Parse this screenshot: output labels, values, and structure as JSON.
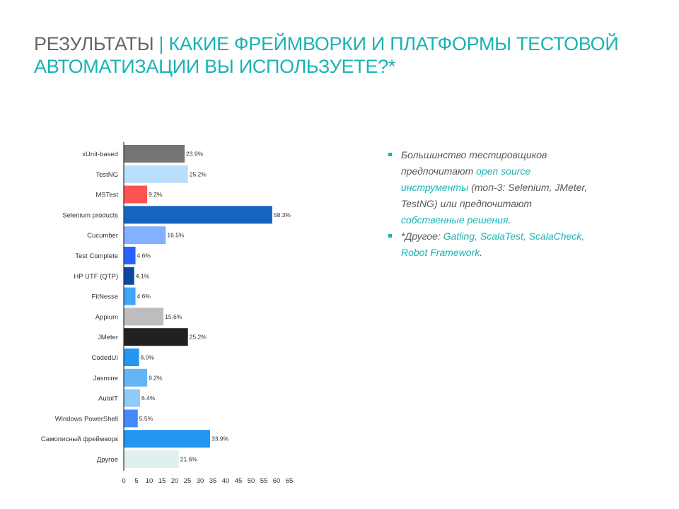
{
  "title": {
    "part1": "РЕЗУЛЬТАТЫ",
    "separator": " | ",
    "part2": "КАКИЕ ФРЕЙМВОРКИ И ПЛАТФОРМЫ ТЕСТОВОЙ АВТОМАТИЗАЦИИ ВЫ ИСПОЛЬЗУЕТЕ?*"
  },
  "notes": {
    "item1": {
      "t1": "Большинство тестировщиков предпочитают ",
      "h1": "open source инструменты",
      "t2": " (топ-3: Selenium, JMeter, TestNG) или предпочитают ",
      "h2": "собственные решения",
      "t3": "."
    },
    "item2": {
      "t1": "*Другое: ",
      "h1": "Gatling, ScalaTest, ScalaCheck, Robot Framework",
      "t2": "."
    }
  },
  "colors": {
    "accent": "#19b3b3",
    "title_gray": "#666666"
  },
  "chart_data": {
    "type": "bar",
    "orientation": "horizontal",
    "categories": [
      "xUnit-based",
      "TestNG",
      "MSTest",
      "Selenium products",
      "Cucumber",
      "Test Complete",
      "HP UTF (QTP)",
      "FitNesse",
      "Appium",
      "JMeter",
      "CodedUI",
      "Jasmine",
      "AutoIT",
      "Windows PowerShell",
      "Самописный фреймворк",
      "Другое"
    ],
    "values": [
      23.9,
      25.2,
      9.2,
      58.3,
      16.5,
      4.6,
      4.1,
      4.6,
      15.6,
      25.2,
      6.0,
      9.2,
      6.4,
      5.5,
      33.9,
      21.6
    ],
    "value_labels": [
      "23.9%",
      "25.2%",
      "9.2%",
      "58.3%",
      "16.5%",
      "4.6%",
      "4.1%",
      "4.6%",
      "15.6%",
      "25.2%",
      "6.0%",
      "9.2%",
      "6.4%",
      "5.5%",
      "33.9%",
      "21.6%"
    ],
    "bar_colors": [
      "#757575",
      "#bbdefb",
      "#ff5252",
      "#1565c0",
      "#82b1ff",
      "#2962ff",
      "#0d47a1",
      "#42a5f5",
      "#bdbdbd",
      "#212121",
      "#2196f3",
      "#64b5f6",
      "#90caf9",
      "#448aff",
      "#2196f3",
      "#e0eff0"
    ],
    "xticks": [
      "0",
      "5",
      "10",
      "15",
      "20",
      "25",
      "30",
      "35",
      "40",
      "45",
      "50",
      "55",
      "60",
      "65"
    ],
    "xlim": [
      0,
      65
    ],
    "grid": false
  }
}
